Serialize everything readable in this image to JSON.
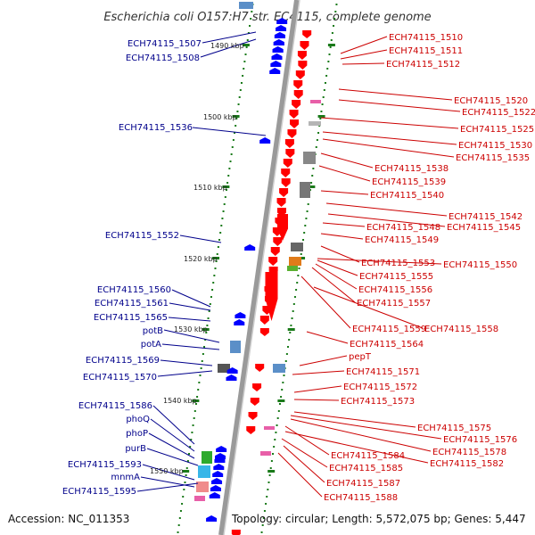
{
  "title": "Escherichia coli O157:H7 str. EC4115, complete genome",
  "accession_label": "Accession: NC_011353",
  "topology_label": "Topology: circular; Length: 5,572,075 bp; Genes: 5,447",
  "colors": {
    "left_gene": "#0000ff",
    "right_gene": "#ff0000",
    "left_label": "#00008b",
    "right_label": "#cc0000",
    "backbone": "#9a9a9a",
    "tick": "#1a7a1a"
  },
  "kbp_labels": [
    "1490 kbp",
    "1500 kbp",
    "1510 kbp",
    "1520 kbp",
    "1530 kbp",
    "1540 kbp",
    "1550 kbp"
  ],
  "left_genes": [
    "ECH74115_1507",
    "ECH74115_1508",
    "ECH74115_1536",
    "ECH74115_1552",
    "ECH74115_1560",
    "ECH74115_1561",
    "ECH74115_1565",
    "potB",
    "potA",
    "ECH74115_1569",
    "ECH74115_1570",
    "ECH74115_1586",
    "phoQ",
    "phoP",
    "purB",
    "ECH74115_1593",
    "mnmA",
    "ECH74115_1595"
  ],
  "right_genes": [
    "ECH74115_1510",
    "ECH74115_1511",
    "ECH74115_1512",
    "ECH74115_1520",
    "ECH74115_1522",
    "ECH74115_1525",
    "ECH74115_1530",
    "ECH74115_1535",
    "ECH74115_1538",
    "ECH74115_1539",
    "ECH74115_1540",
    "ECH74115_1542",
    "ECH74115_1548",
    "ECH74115_1545",
    "ECH74115_1549",
    "ECH74115_1553",
    "ECH74115_1550",
    "ECH74115_1555",
    "ECH74115_1556",
    "ECH74115_1557",
    "ECH74115_1559",
    "ECH74115_1558",
    "ECH74115_1564",
    "pepT",
    "ECH74115_1571",
    "ECH74115_1572",
    "ECH74115_1573",
    "ECH74115_1575",
    "ECH74115_1576",
    "ECH74115_1578",
    "ECH74115_1584",
    "ECH74115_1582",
    "ECH74115_1585",
    "ECH74115_1587",
    "ECH74115_1588"
  ]
}
